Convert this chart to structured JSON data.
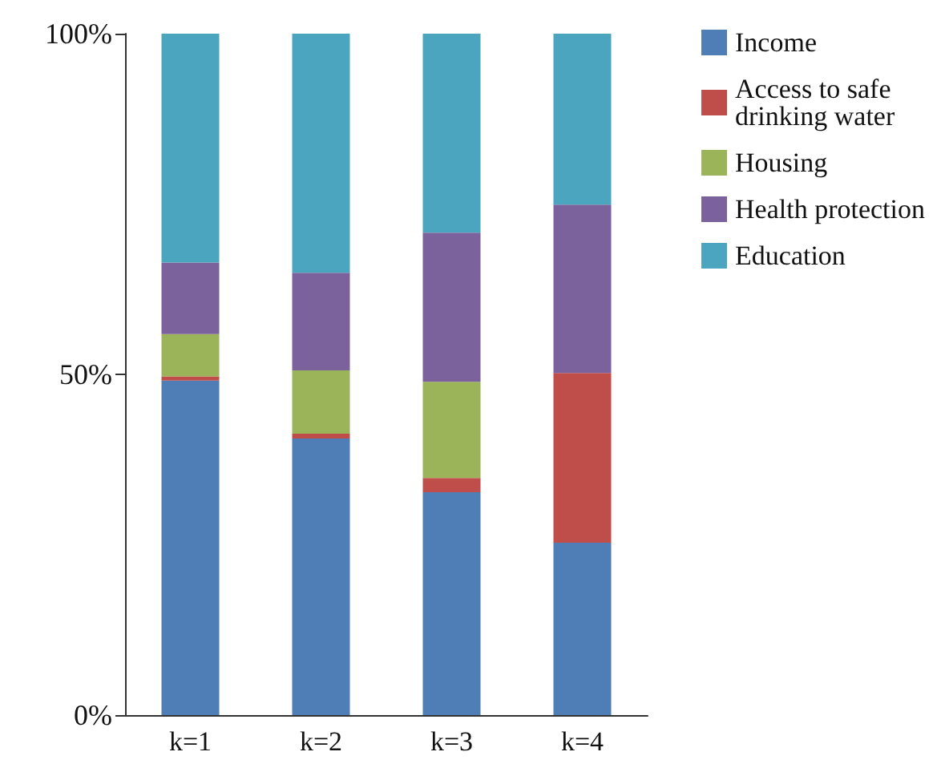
{
  "chart_data": {
    "type": "bar",
    "stacked": true,
    "categories": [
      "k=1",
      "k=2",
      "k=3",
      "k=4"
    ],
    "series": [
      {
        "name": "Income",
        "color": "#4f7db5",
        "values": [
          49.1,
          40.6,
          32.7,
          25.3
        ]
      },
      {
        "name": "Access to safe drinking water",
        "color": "#bf4e4b",
        "values": [
          0.6,
          0.7,
          2.1,
          24.9
        ]
      },
      {
        "name": "Housing",
        "color": "#9bb45a",
        "values": [
          6.2,
          9.3,
          14.1,
          0
        ]
      },
      {
        "name": "Health protection",
        "color": "#7c629d",
        "values": [
          10.5,
          14.3,
          21.9,
          24.7
        ]
      },
      {
        "name": "Education",
        "color": "#4ba5bf",
        "values": [
          33.6,
          35.1,
          29.2,
          25.1
        ]
      }
    ],
    "ylim": [
      0,
      100
    ],
    "yticks": [
      {
        "value": 0,
        "label": "0%"
      },
      {
        "value": 50,
        "label": "50%"
      },
      {
        "value": 100,
        "label": "100%"
      }
    ],
    "grid": false,
    "legend": "top right"
  }
}
